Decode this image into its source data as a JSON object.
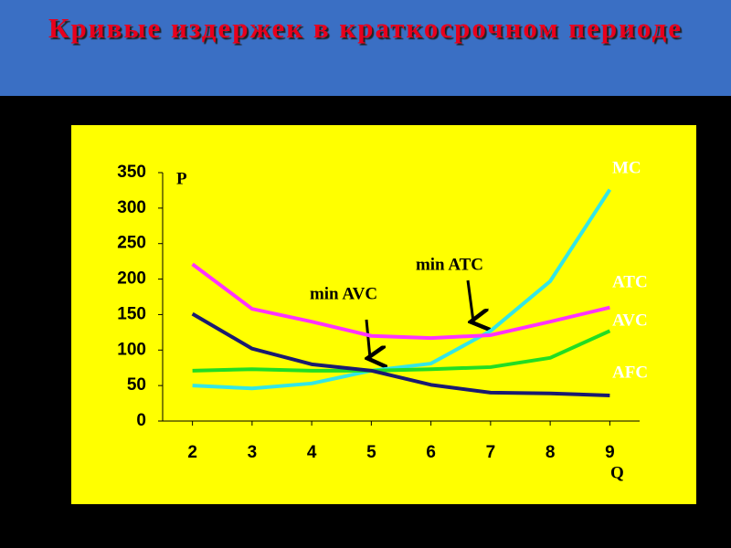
{
  "chart_data": {
    "type": "line",
    "title": "Кривые издержек в краткосрочном периоде",
    "y_label": "P",
    "x_label": "Q",
    "x": [
      2,
      3,
      4,
      5,
      6,
      7,
      8,
      9
    ],
    "xlim": [
      1.5,
      9.5
    ],
    "xticks": [
      2,
      3,
      4,
      5,
      6,
      7,
      8,
      9
    ],
    "ylim": [
      0,
      350
    ],
    "yticks": [
      0,
      50,
      100,
      150,
      200,
      250,
      300,
      350
    ],
    "grid": false,
    "series": [
      {
        "name": "MC",
        "color": "#33e6e6",
        "values": [
          50,
          46,
          53,
          71,
          81,
          127,
          197,
          326
        ]
      },
      {
        "name": "ATC",
        "color": "#ff33ff",
        "values": [
          221,
          158,
          140,
          120,
          117,
          121,
          140,
          160
        ]
      },
      {
        "name": "AVC",
        "color": "#22dd22",
        "values": [
          71,
          73,
          71,
          71,
          73,
          76,
          89,
          127
        ]
      },
      {
        "name": "AFC",
        "color": "#1a1a70",
        "values": [
          151,
          102,
          80,
          71,
          51,
          40,
          39,
          36
        ]
      }
    ],
    "annotations": [
      "min AVC",
      "min ATC"
    ]
  }
}
